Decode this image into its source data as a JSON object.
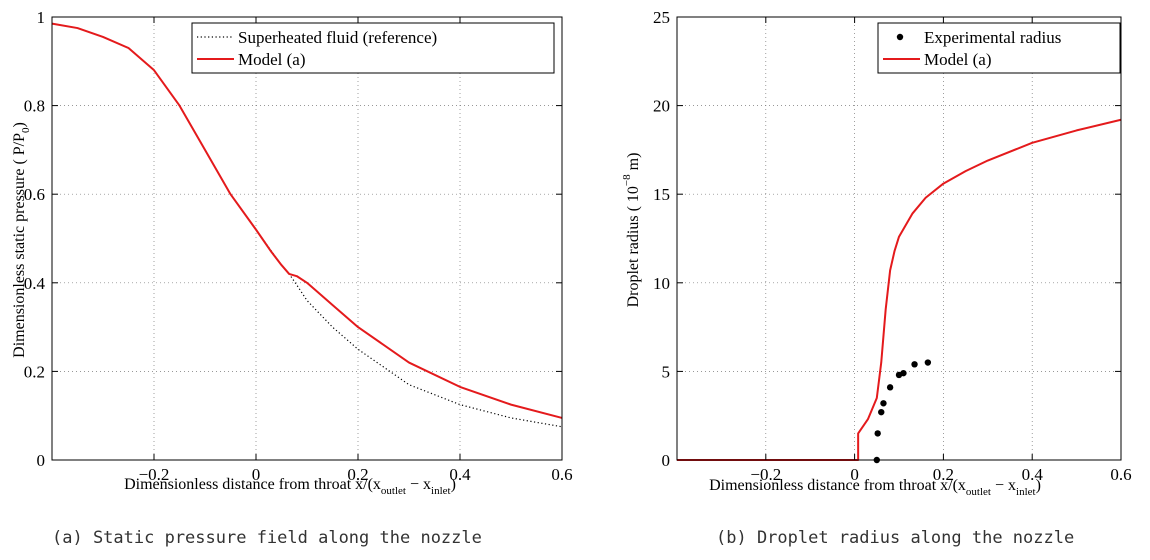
{
  "chart_data": [
    {
      "type": "line",
      "caption": "(a) Static pressure field along the nozzle",
      "xlabel": "Dimensionless distance from throat  x/(x",
      "xlabel_sub1": "outlet",
      "xlabel_mid": " − x",
      "xlabel_sub2": "inlet",
      "xlabel_end": ")",
      "ylabel": "Dimensionless static pressure ( P/P",
      "ylabel_sub": "0",
      "ylabel_end": ")",
      "xlim": [
        -0.4,
        0.6
      ],
      "ylim": [
        0,
        1
      ],
      "xticks": [
        -0.2,
        0,
        0.2,
        0.4,
        0.6
      ],
      "xtick_labels": [
        "−0.2",
        "0",
        "0.2",
        "0.4",
        "0.6"
      ],
      "yticks": [
        0,
        0.2,
        0.4,
        0.6,
        0.8,
        1
      ],
      "ytick_labels": [
        "0",
        "0.2",
        "0.4",
        "0.6",
        "0.8",
        "1"
      ],
      "grid": true,
      "legend_position": "top-right",
      "series": [
        {
          "name": "Superheated fluid (reference)",
          "color": "#000000",
          "style": "dotted",
          "x": [
            -0.4,
            -0.35,
            -0.3,
            -0.25,
            -0.2,
            -0.15,
            -0.1,
            -0.05,
            0.0,
            0.05,
            0.065,
            0.08,
            0.1,
            0.15,
            0.2,
            0.3,
            0.4,
            0.5,
            0.6
          ],
          "y": [
            0.985,
            0.975,
            0.955,
            0.93,
            0.88,
            0.8,
            0.7,
            0.6,
            0.52,
            0.44,
            0.42,
            0.395,
            0.36,
            0.3,
            0.25,
            0.17,
            0.125,
            0.095,
            0.075
          ]
        },
        {
          "name": "Model (a)",
          "color": "#e41a1c",
          "style": "solid",
          "x": [
            -0.4,
            -0.35,
            -0.3,
            -0.25,
            -0.2,
            -0.15,
            -0.1,
            -0.05,
            0.0,
            0.03,
            0.05,
            0.065,
            0.08,
            0.1,
            0.12,
            0.15,
            0.2,
            0.3,
            0.4,
            0.5,
            0.6
          ],
          "y": [
            0.985,
            0.975,
            0.955,
            0.93,
            0.88,
            0.8,
            0.7,
            0.6,
            0.52,
            0.47,
            0.44,
            0.42,
            0.415,
            0.4,
            0.38,
            0.35,
            0.3,
            0.22,
            0.165,
            0.125,
            0.095
          ]
        }
      ]
    },
    {
      "type": "line",
      "caption": "(b) Droplet radius along the nozzle",
      "xlabel": "Dimensionless distance from throat  x/(x",
      "xlabel_sub1": "outlet",
      "xlabel_mid": " − x",
      "xlabel_sub2": "inlet",
      "xlabel_end": ")",
      "ylabel": "Droplet radius ( 10",
      "ylabel_sup": "−8",
      "ylabel_end": " m)",
      "xlim": [
        -0.4,
        0.6
      ],
      "ylim": [
        0,
        25
      ],
      "xticks": [
        -0.2,
        0,
        0.2,
        0.4,
        0.6
      ],
      "xtick_labels": [
        "−0.2",
        "0",
        "0.2",
        "0.4",
        "0.6"
      ],
      "yticks": [
        0,
        5,
        10,
        15,
        20,
        25
      ],
      "ytick_labels": [
        "0",
        "5",
        "10",
        "15",
        "20",
        "25"
      ],
      "grid": true,
      "legend_position": "top-right",
      "series": [
        {
          "name": "Experimental radius",
          "color": "#000000",
          "style": "markers",
          "x": [
            0.05,
            0.052,
            0.06,
            0.065,
            0.08,
            0.1,
            0.11,
            0.135,
            0.165
          ],
          "y": [
            0.0,
            1.5,
            2.7,
            3.2,
            4.1,
            4.8,
            4.9,
            5.4,
            5.5
          ]
        },
        {
          "name": "Model (a)",
          "color": "#e41a1c",
          "style": "solid",
          "x": [
            -0.4,
            0.0,
            0.008,
            0.008,
            0.03,
            0.05,
            0.06,
            0.07,
            0.08,
            0.09,
            0.1,
            0.13,
            0.16,
            0.2,
            0.25,
            0.3,
            0.4,
            0.5,
            0.6
          ],
          "y": [
            0,
            0,
            0,
            1.5,
            2.3,
            3.5,
            5.5,
            8.5,
            10.7,
            11.8,
            12.6,
            13.9,
            14.8,
            15.6,
            16.3,
            16.9,
            17.9,
            18.6,
            19.2
          ]
        }
      ]
    }
  ]
}
